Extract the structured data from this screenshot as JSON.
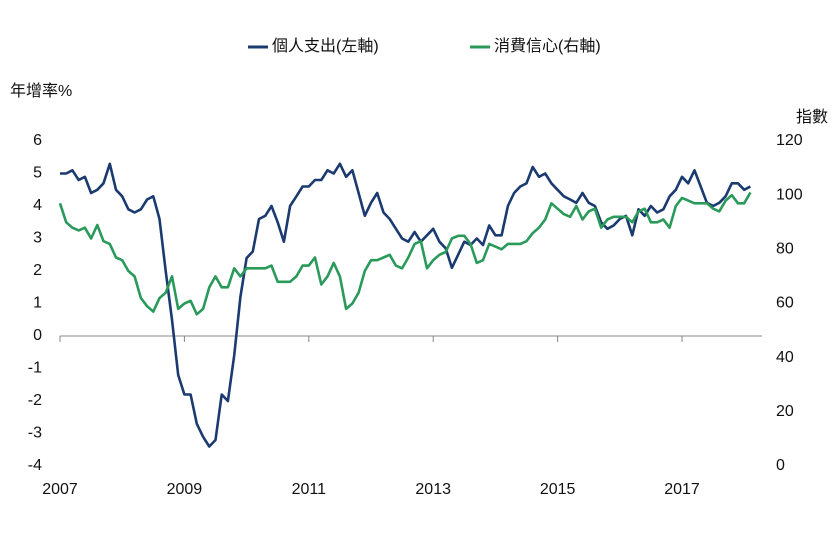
{
  "chart_data": {
    "type": "line",
    "legend_position": "top",
    "ylabel": "年增率%",
    "y2label": "指數",
    "x": [
      2007,
      2007.1,
      2007.2,
      2007.3,
      2007.4,
      2007.5,
      2007.6,
      2007.7,
      2007.8,
      2007.9,
      2008,
      2008.1,
      2008.2,
      2008.3,
      2008.4,
      2008.5,
      2008.6,
      2008.7,
      2008.8,
      2008.9,
      2009,
      2009.1,
      2009.2,
      2009.3,
      2009.4,
      2009.5,
      2009.6,
      2009.7,
      2009.8,
      2009.9,
      2010,
      2010.1,
      2010.2,
      2010.3,
      2010.4,
      2010.5,
      2010.6,
      2010.7,
      2010.8,
      2010.9,
      2011,
      2011.1,
      2011.2,
      2011.3,
      2011.4,
      2011.5,
      2011.6,
      2011.7,
      2011.8,
      2011.9,
      2012,
      2012.1,
      2012.2,
      2012.3,
      2012.4,
      2012.5,
      2012.6,
      2012.7,
      2012.8,
      2012.9,
      2013,
      2013.1,
      2013.2,
      2013.3,
      2013.4,
      2013.5,
      2013.6,
      2013.7,
      2013.8,
      2013.9,
      2014,
      2014.1,
      2014.2,
      2014.3,
      2014.4,
      2014.5,
      2014.6,
      2014.7,
      2014.8,
      2014.9,
      2015,
      2015.1,
      2015.2,
      2015.3,
      2015.4,
      2015.5,
      2015.6,
      2015.7,
      2015.8,
      2015.9,
      2016,
      2016.1,
      2016.2,
      2016.3,
      2016.4,
      2016.5,
      2016.6,
      2016.7,
      2016.8,
      2016.9,
      2017,
      2017.1,
      2017.2,
      2017.3,
      2017.4,
      2017.5,
      2017.6,
      2017.7,
      2017.8,
      2017.9,
      2018,
      2018.1
    ],
    "series": [
      {
        "name": "個人支出(左軸)",
        "color": "#1b3a6f",
        "axis": "y",
        "values": [
          5.0,
          5.0,
          5.1,
          4.8,
          4.9,
          4.4,
          4.5,
          4.7,
          5.3,
          4.5,
          4.3,
          3.9,
          3.8,
          3.9,
          4.2,
          4.3,
          3.6,
          2.0,
          0.5,
          -1.2,
          -1.8,
          -1.8,
          -2.7,
          -3.1,
          -3.4,
          -3.2,
          -1.8,
          -2.0,
          -0.6,
          1.2,
          2.4,
          2.6,
          3.6,
          3.7,
          4.0,
          3.5,
          2.9,
          4.0,
          4.3,
          4.6,
          4.6,
          4.8,
          4.8,
          5.1,
          5.0,
          5.3,
          4.9,
          5.1,
          4.4,
          3.7,
          4.1,
          4.4,
          3.8,
          3.6,
          3.3,
          3.0,
          2.9,
          3.2,
          2.9,
          3.1,
          3.3,
          2.9,
          2.7,
          2.1,
          2.5,
          2.9,
          2.8,
          3.0,
          2.8,
          3.4,
          3.1,
          3.1,
          4.0,
          4.4,
          4.6,
          4.7,
          5.2,
          4.9,
          5.0,
          4.7,
          4.5,
          4.3,
          4.2,
          4.1,
          4.4,
          4.1,
          4.0,
          3.5,
          3.3,
          3.4,
          3.6,
          3.7,
          3.1,
          3.9,
          3.7,
          4.0,
          3.8,
          3.9,
          4.3,
          4.5,
          4.9,
          4.7,
          5.1,
          4.6,
          4.1,
          4.0,
          4.1,
          4.3,
          4.7,
          4.7,
          4.5,
          4.6
        ]
      },
      {
        "name": "消費信心(右軸)",
        "color": "#2a9a5a",
        "axis": "y2",
        "values": [
          97,
          90,
          88,
          87,
          88,
          84,
          89,
          83,
          82,
          77,
          76,
          72,
          70,
          62,
          59,
          57,
          62,
          64,
          70,
          58,
          60,
          61,
          56,
          58,
          66,
          70,
          66,
          66,
          73,
          70,
          73,
          73,
          73,
          73,
          74,
          68,
          68,
          68,
          70,
          74,
          74,
          77,
          67,
          70,
          75,
          70,
          58,
          60,
          64,
          72,
          76,
          76,
          77,
          78,
          74,
          73,
          77,
          82,
          83,
          73,
          76,
          78,
          79,
          84,
          85,
          85,
          82,
          75,
          76,
          82,
          81,
          80,
          82,
          82,
          82,
          83,
          86,
          88,
          91,
          97,
          95,
          93,
          92,
          96,
          91,
          94,
          95,
          88,
          91,
          92,
          92,
          92,
          90,
          94,
          95,
          90,
          90,
          91,
          88,
          96,
          99,
          98,
          97,
          97,
          97,
          95,
          94,
          98,
          100,
          97,
          97,
          101
        ]
      }
    ],
    "xlim": [
      2007,
      2018.35
    ],
    "xticks": [
      2007,
      2009,
      2011,
      2013,
      2015,
      2017
    ],
    "ylim": [
      -4,
      6
    ],
    "yticks": [
      -4,
      -3,
      -2,
      -1,
      0,
      1,
      2,
      3,
      4,
      5,
      6
    ],
    "y2lim": [
      0,
      120
    ],
    "y2ticks": [
      0,
      20,
      40,
      60,
      80,
      100,
      120
    ]
  }
}
